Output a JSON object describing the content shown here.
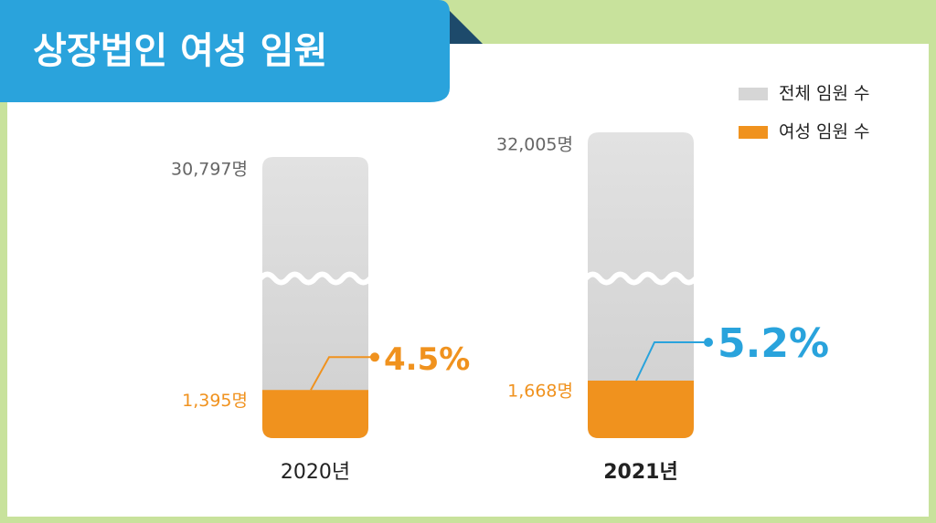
{
  "chart_data": {
    "type": "bar",
    "title": "상장법인 여성 임원",
    "categories": [
      "2020년",
      "2021년"
    ],
    "series": [
      {
        "name": "전체 임원 수",
        "color": "#d6d6d6",
        "values": [
          30797,
          32005
        ],
        "value_labels": [
          "30,797명",
          "32,005명"
        ]
      },
      {
        "name": "여성 임원 수",
        "color": "#f0921e",
        "values": [
          1395,
          1668
        ],
        "value_labels": [
          "1,395명",
          "1,668명"
        ]
      }
    ],
    "annotations": [
      {
        "text": "4.5%",
        "color": "#f0921e"
      },
      {
        "text": "5.2%",
        "color": "#29a3dc"
      }
    ]
  }
}
